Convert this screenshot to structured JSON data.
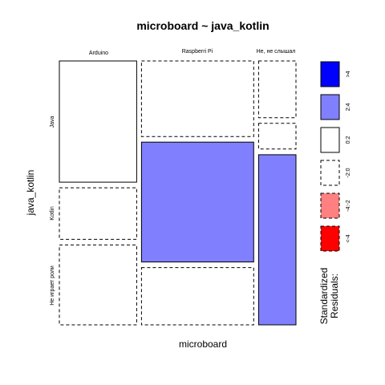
{
  "chart_data": {
    "type": "mosaic",
    "title": "microboard ~ java_kotlin",
    "xlabel": "microboard",
    "ylabel": "java_kotlin",
    "x_categories": [
      "Arduino",
      "Raspberri Pi",
      "Не, не слышал"
    ],
    "y_categories": [
      "Java",
      "Kotlin",
      "Не играет роли"
    ],
    "column_shares": [
      0.31,
      0.45,
      0.15
    ],
    "cells": [
      {
        "x": "Arduino",
        "y": "Java",
        "share": 0.47,
        "residual_class": "0:2"
      },
      {
        "x": "Arduino",
        "y": "Kotlin",
        "share": 0.2,
        "residual_class": "-2:0"
      },
      {
        "x": "Arduino",
        "y": "Не играет роли",
        "share": 0.31,
        "residual_class": "-2:0"
      },
      {
        "x": "Raspberri Pi",
        "y": "Java",
        "share": 0.29,
        "residual_class": "-2:0"
      },
      {
        "x": "Raspberri Pi",
        "y": "Kotlin",
        "share": 0.46,
        "residual_class": "2:4"
      },
      {
        "x": "Raspberri Pi",
        "y": "Не играет роли",
        "share": 0.22,
        "residual_class": "-2:0"
      },
      {
        "x": "Не, не слышал",
        "y": "Java",
        "share": 0.22,
        "residual_class": "-2:0"
      },
      {
        "x": "Не, не слышал",
        "y": "Kotlin",
        "share": 0.1,
        "residual_class": "-2:0"
      },
      {
        "x": "Не, не слышал",
        "y": "Не играет роли",
        "share": 0.66,
        "residual_class": "2:4"
      }
    ],
    "legend": {
      "title_lines": [
        "Standardized",
        "Residuals:"
      ],
      "placement": "right",
      "items": [
        {
          "label": ">4",
          "color": "#0000ff",
          "dashed": false
        },
        {
          "label": "2:4",
          "color": "#8080ff",
          "dashed": false
        },
        {
          "label": "0:2",
          "color": "#ffffff",
          "dashed": false
        },
        {
          "label": "-2:0",
          "color": "#ffffff",
          "dashed": true
        },
        {
          "label": "-4:-2",
          "color": "#ff8080",
          "dashed": true
        },
        {
          "label": "<-4",
          "color": "#ff0000",
          "dashed": true
        }
      ]
    }
  }
}
